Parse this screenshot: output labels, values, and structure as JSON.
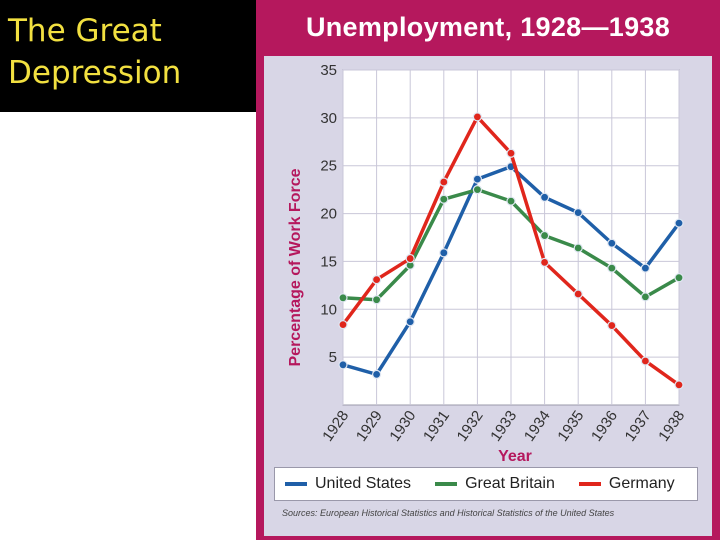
{
  "slide": {
    "title_line1": "The Great",
    "title_line2": "Depression"
  },
  "chart_data": {
    "type": "line",
    "title": "Unemployment, 1928—1938",
    "xlabel": "Year",
    "ylabel": "Percentage of Work Force",
    "ylim": [
      0,
      35
    ],
    "y_ticks": [
      5,
      10,
      15,
      20,
      25,
      30,
      35
    ],
    "categories": [
      "1928",
      "1929",
      "1930",
      "1931",
      "1932",
      "1933",
      "1934",
      "1935",
      "1936",
      "1937",
      "1938"
    ],
    "series": [
      {
        "name": "United States",
        "color": "#1f5fa8",
        "values": [
          4.2,
          3.2,
          8.7,
          15.9,
          23.6,
          24.9,
          21.7,
          20.1,
          16.9,
          14.3,
          19.0
        ]
      },
      {
        "name": "Great Britain",
        "color": "#3a8a4a",
        "values": [
          11.2,
          11.0,
          14.6,
          21.5,
          22.5,
          21.3,
          17.7,
          16.4,
          14.3,
          11.3,
          13.3
        ]
      },
      {
        "name": "Germany",
        "color": "#e0261c",
        "values": [
          8.4,
          13.1,
          15.3,
          23.3,
          30.1,
          26.3,
          14.9,
          11.6,
          8.3,
          4.6,
          2.1
        ]
      }
    ],
    "grid": true,
    "legend_position": "bottom",
    "source": "Sources: European Historical Statistics and Historical Statistics of the United States"
  }
}
